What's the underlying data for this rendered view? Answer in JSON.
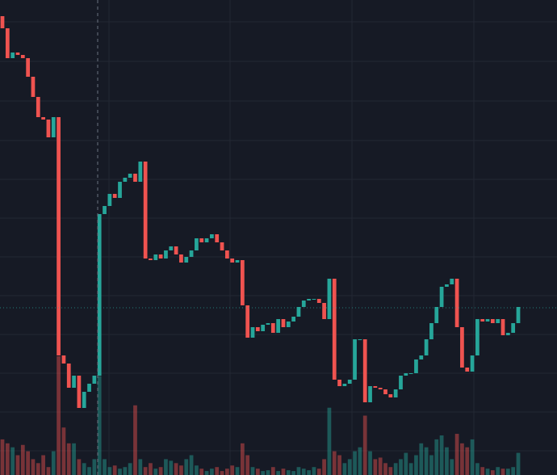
{
  "chart_data": {
    "type": "candlestick",
    "ylim": [
      12,
      600
    ],
    "volume_lim": [
      0,
      600
    ],
    "up_color": "#26a69a",
    "down_color": "#ef5350",
    "open": [
      580,
      565,
      528,
      535,
      532,
      528,
      505,
      480,
      455,
      452,
      430,
      455,
      160,
      150,
      120,
      135,
      95,
      115,
      125,
      135,
      335,
      345,
      360,
      355,
      375,
      380,
      385,
      375,
      400,
      280,
      278,
      285,
      280,
      290,
      295,
      285,
      275,
      282,
      290,
      305,
      300,
      305,
      310,
      300,
      290,
      280,
      275,
      278,
      222,
      182,
      195,
      190,
      198,
      200,
      188,
      205,
      195,
      202,
      208,
      220,
      228,
      230,
      230,
      225,
      205,
      255,
      130,
      122,
      125,
      130,
      180,
      180,
      102,
      122,
      120,
      118,
      112,
      108,
      118,
      135,
      138,
      138,
      155,
      160,
      180,
      200,
      220,
      245,
      248,
      255,
      195,
      145,
      140,
      160,
      205,
      202,
      205,
      200,
      205,
      185,
      188,
      200
    ],
    "close": [
      565,
      528,
      535,
      532,
      528,
      505,
      480,
      455,
      452,
      430,
      455,
      160,
      150,
      120,
      135,
      95,
      115,
      125,
      135,
      335,
      345,
      360,
      355,
      375,
      380,
      385,
      375,
      400,
      280,
      278,
      285,
      280,
      290,
      295,
      285,
      275,
      282,
      290,
      305,
      300,
      305,
      310,
      300,
      290,
      280,
      275,
      278,
      222,
      182,
      195,
      190,
      198,
      200,
      188,
      205,
      195,
      202,
      208,
      220,
      228,
      230,
      230,
      225,
      205,
      255,
      130,
      122,
      125,
      130,
      180,
      180,
      102,
      122,
      120,
      118,
      112,
      108,
      118,
      135,
      138,
      138,
      155,
      160,
      180,
      200,
      220,
      245,
      248,
      255,
      195,
      145,
      140,
      160,
      205,
      202,
      205,
      200,
      205,
      185,
      188,
      200,
      220
    ],
    "volume": [
      45,
      40,
      35,
      25,
      38,
      30,
      20,
      15,
      25,
      10,
      30,
      150,
      60,
      40,
      40,
      20,
      15,
      10,
      20,
      125,
      20,
      10,
      12,
      8,
      10,
      15,
      88,
      20,
      10,
      15,
      8,
      10,
      20,
      18,
      15,
      12,
      20,
      25,
      12,
      8,
      5,
      8,
      10,
      5,
      8,
      12,
      10,
      40,
      25,
      10,
      8,
      5,
      6,
      10,
      5,
      8,
      6,
      5,
      10,
      8,
      6,
      10,
      8,
      20,
      85,
      30,
      25,
      15,
      20,
      30,
      35,
      75,
      30,
      20,
      22,
      15,
      10,
      15,
      20,
      28,
      15,
      25,
      40,
      35,
      25,
      45,
      50,
      35,
      20,
      52,
      40,
      35,
      45,
      15,
      10,
      8,
      6,
      10,
      8,
      8,
      10,
      28
    ]
  }
}
